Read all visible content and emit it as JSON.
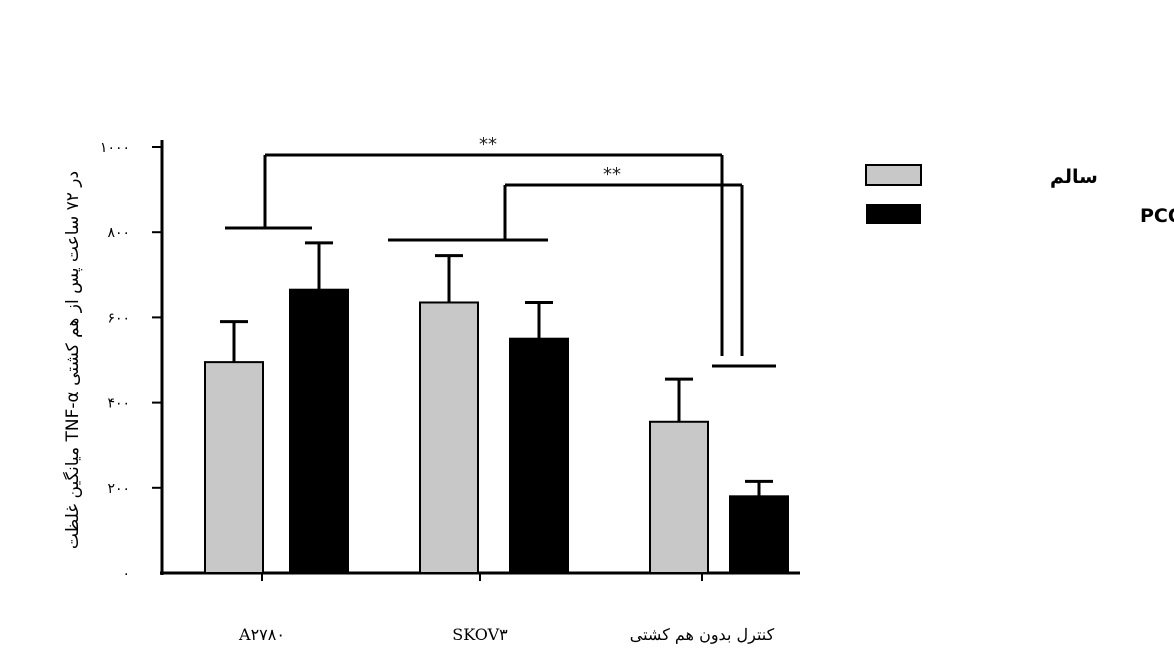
{
  "chart_data": {
    "type": "bar",
    "ylabel": "میانگین غلظت TNF-α در ۷۲ ساعت پس از هم کشتی",
    "ylim": [
      0,
      1000
    ],
    "y_ticks": [
      "۰",
      "۲۰۰",
      "۴۰۰",
      "۶۰۰",
      "۸۰۰",
      "۱۰۰۰"
    ],
    "y_tick_values": [
      0,
      200,
      400,
      600,
      800,
      1000
    ],
    "categories": [
      "A۲۷۸۰",
      "SKOV۳",
      "کنترل بدون هم کشتی"
    ],
    "series": [
      {
        "name": "سالم",
        "color": "#c8c8c8",
        "values": [
          495,
          635,
          355
        ],
        "errors": [
          95,
          110,
          100
        ]
      },
      {
        "name": "بیمار مبتلا به PCOS",
        "color": "#000000",
        "values": [
          665,
          550,
          180
        ],
        "errors": [
          110,
          85,
          35
        ]
      }
    ],
    "annotations": [
      {
        "text": "**",
        "from_category": 0,
        "to_category": 2
      },
      {
        "text": "**",
        "from_category": 1,
        "to_category": 2
      }
    ],
    "legend_position": "top-right",
    "grid": false
  }
}
